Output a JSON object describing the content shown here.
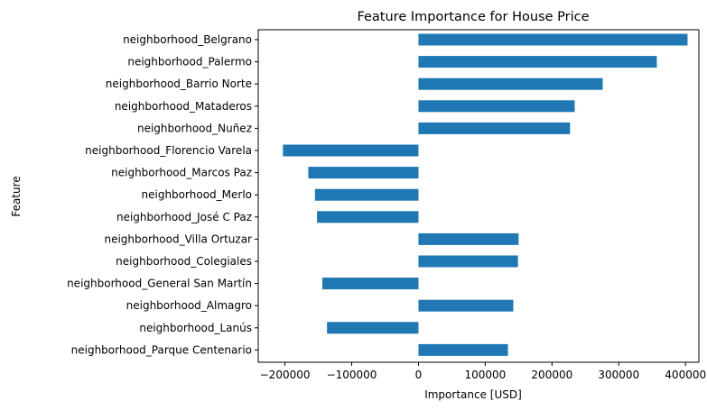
{
  "chart_data": {
    "type": "bar",
    "orientation": "horizontal",
    "title": "Feature Importance for House Price",
    "xlabel": "Importance [USD]",
    "ylabel": "Feature",
    "xlim": [
      -240000,
      420000
    ],
    "xticks": [
      -200000,
      -100000,
      0,
      100000,
      200000,
      300000,
      400000
    ],
    "xtick_labels": [
      "−200000",
      "−100000",
      "0",
      "100000",
      "200000",
      "300000",
      "400000"
    ],
    "grid": false,
    "bar_color": "#1f77b4",
    "categories": [
      "neighborhood_Belgrano",
      "neighborhood_Palermo",
      "neighborhood_Barrio Norte",
      "neighborhood_Mataderos",
      "neighborhood_Nuñez",
      "neighborhood_Florencio Varela",
      "neighborhood_Marcos Paz",
      "neighborhood_Merlo",
      "neighborhood_José C Paz",
      "neighborhood_Villa Ortuzar",
      "neighborhood_Colegiales",
      "neighborhood_General San Martín",
      "neighborhood_Almagro",
      "neighborhood_Lanús",
      "neighborhood_Parque Centenario"
    ],
    "values": [
      403000,
      357000,
      276000,
      234000,
      227000,
      -203000,
      -165000,
      -155000,
      -152000,
      150000,
      149000,
      -144000,
      142000,
      -137000,
      134000
    ]
  }
}
